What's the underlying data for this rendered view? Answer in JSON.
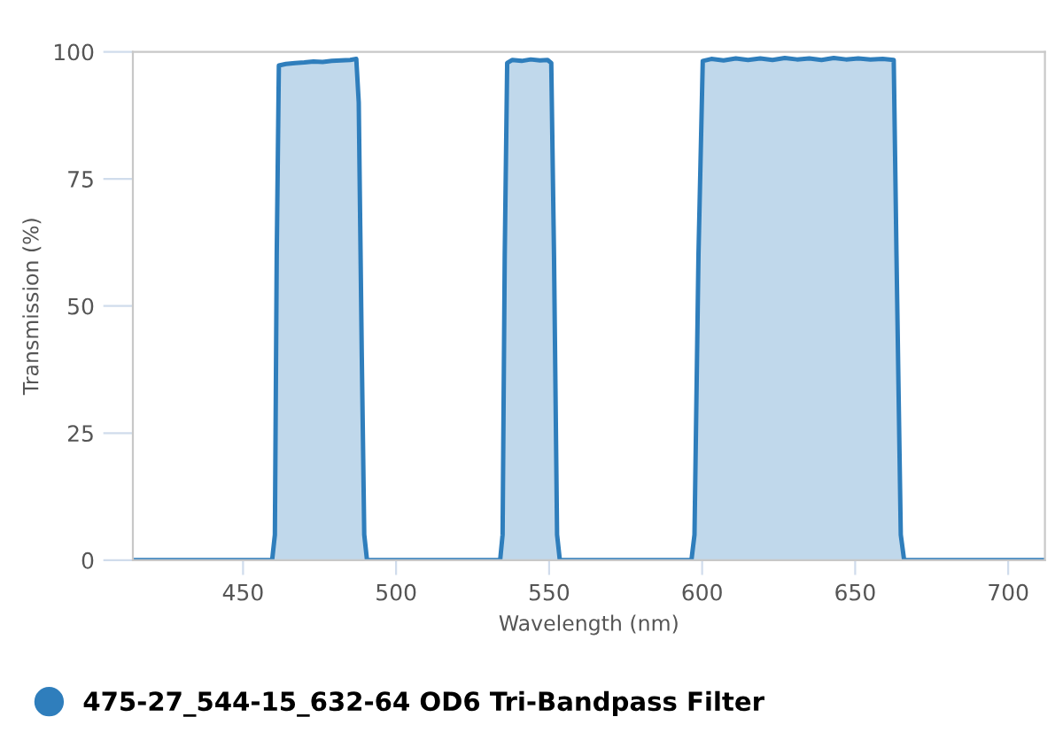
{
  "chart_data": {
    "type": "area",
    "xlabel": "Wavelength (nm)",
    "ylabel": "Transmission (%)",
    "xlim": [
      414,
      712
    ],
    "xticks": [
      450,
      500,
      550,
      600,
      650,
      700
    ],
    "ylim": [
      0,
      100
    ],
    "yticks": [
      0,
      25,
      50,
      75,
      100
    ],
    "grid": false,
    "legend": "bottom left",
    "series": [
      {
        "name": "475-27_544-15_632-64 OD6 Tri-Bandpass Filter",
        "color": "#2f7ebc",
        "x": [
          414,
          459.5,
          460.4,
          461,
          461.7,
          464,
          467,
          470,
          473,
          476,
          479,
          482,
          485,
          487,
          487.8,
          488.8,
          489.6,
          490.5,
          534,
          534.8,
          535.5,
          536.3,
          538,
          541,
          544,
          547,
          549.5,
          550.7,
          551.6,
          552.6,
          553.5,
          596.5,
          597.5,
          598.8,
          600.2,
          603,
          607,
          611,
          615,
          619,
          623,
          627,
          631,
          635,
          639,
          643,
          647,
          651,
          655,
          659,
          662.6,
          663.5,
          664.9,
          666,
          712
        ],
        "values": [
          0,
          0,
          5,
          60,
          97.3,
          97.6,
          97.8,
          97.9,
          98.1,
          98.0,
          98.2,
          98.3,
          98.4,
          98.6,
          90,
          40,
          5,
          0,
          0,
          5,
          60,
          97.8,
          98.4,
          98.2,
          98.5,
          98.3,
          98.4,
          97.8,
          60,
          5,
          0,
          0,
          5,
          60,
          98.2,
          98.6,
          98.3,
          98.7,
          98.4,
          98.7,
          98.4,
          98.8,
          98.5,
          98.7,
          98.4,
          98.8,
          98.5,
          98.7,
          98.5,
          98.6,
          98.4,
          60,
          5,
          0,
          0
        ]
      }
    ]
  }
}
